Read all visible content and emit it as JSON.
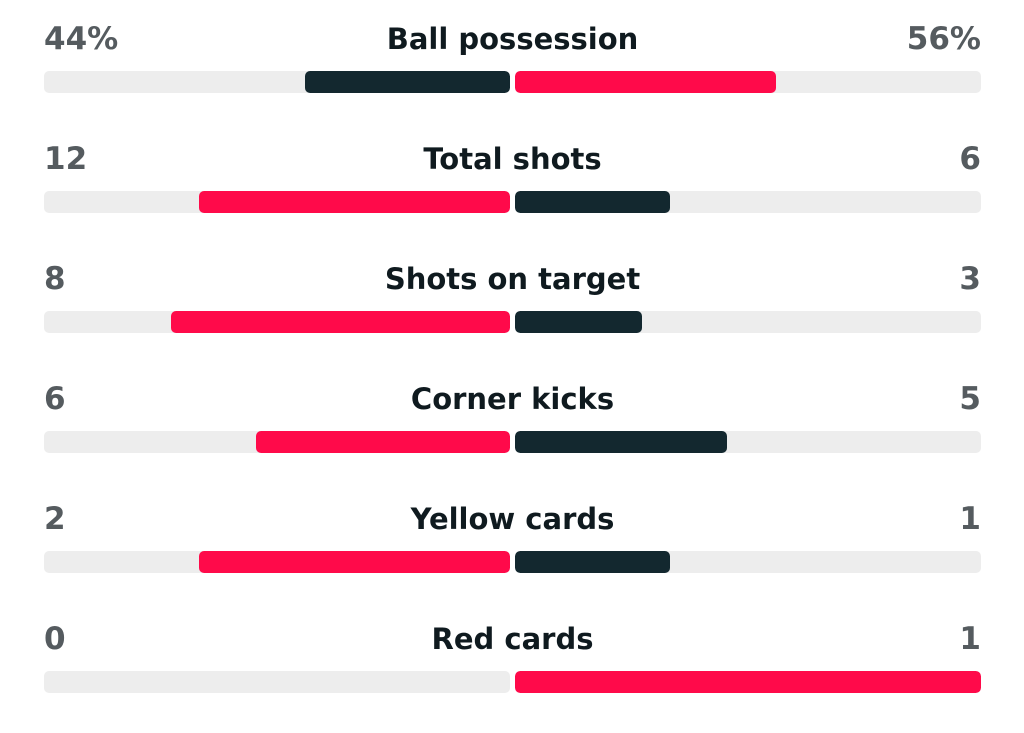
{
  "colors": {
    "home": "#0f2a36",
    "away": "#ff0a4a",
    "home_winning": "#ff0a4a",
    "away_losing": "#0f2a36",
    "track": "#ededed"
  },
  "stats": [
    {
      "label": "Ball possession",
      "home": "44%",
      "away": "56%",
      "home_fraction": 0.44,
      "away_fraction": 0.56,
      "home_color": "#13282f",
      "away_color": "#ff0a4a"
    },
    {
      "label": "Total shots",
      "home": "12",
      "away": "6",
      "home_fraction": 0.667,
      "away_fraction": 0.333,
      "home_color": "#ff0a4a",
      "away_color": "#13282f"
    },
    {
      "label": "Shots on target",
      "home": "8",
      "away": "3",
      "home_fraction": 0.727,
      "away_fraction": 0.273,
      "home_color": "#ff0a4a",
      "away_color": "#13282f"
    },
    {
      "label": "Corner kicks",
      "home": "6",
      "away": "5",
      "home_fraction": 0.545,
      "away_fraction": 0.455,
      "home_color": "#ff0a4a",
      "away_color": "#13282f"
    },
    {
      "label": "Yellow cards",
      "home": "2",
      "away": "1",
      "home_fraction": 0.667,
      "away_fraction": 0.333,
      "home_color": "#ff0a4a",
      "away_color": "#13282f"
    },
    {
      "label": "Red cards",
      "home": "0",
      "away": "1",
      "home_fraction": 0.0,
      "away_fraction": 1.0,
      "home_color": "#13282f",
      "away_color": "#ff0a4a"
    }
  ]
}
